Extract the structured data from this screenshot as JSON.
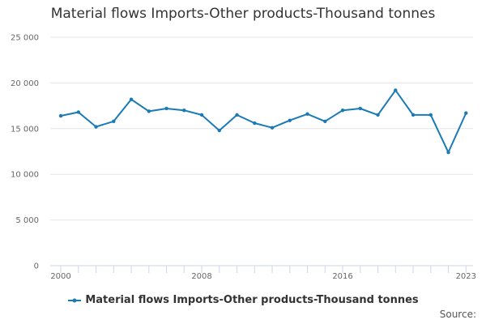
{
  "chart_data": {
    "type": "line",
    "title": "Material flows Imports-Other products-Thousand tonnes",
    "xlabel": "",
    "ylabel": "",
    "x": [
      2000,
      2001,
      2002,
      2003,
      2004,
      2005,
      2006,
      2007,
      2008,
      2009,
      2010,
      2011,
      2012,
      2013,
      2014,
      2015,
      2016,
      2017,
      2018,
      2019,
      2020,
      2021,
      2022,
      2023
    ],
    "x_tick_labels": [
      "2000",
      "2008",
      "2016",
      "2023"
    ],
    "x_tick_values": [
      2000,
      2008,
      2016,
      2023
    ],
    "xlim": [
      1999.4,
      2023.4
    ],
    "ylim": [
      0,
      25000
    ],
    "y_ticks": [
      0,
      5000,
      10000,
      15000,
      20000,
      25000
    ],
    "y_tick_labels": [
      "0",
      "5 000",
      "10 000",
      "15 000",
      "20 000",
      "25 000"
    ],
    "grid": true,
    "legend_position": "bottom-center",
    "series": [
      {
        "name": "Material flows Imports-Other products-Thousand tonnes",
        "color": "#1a7ab5",
        "values": [
          16400,
          16800,
          15200,
          15800,
          18200,
          16900,
          17200,
          17000,
          16500,
          14800,
          16500,
          15600,
          15100,
          15900,
          16600,
          15800,
          17000,
          17200,
          16500,
          19200,
          16500,
          16500,
          12400,
          16700
        ]
      }
    ]
  },
  "source_label": "Source:"
}
